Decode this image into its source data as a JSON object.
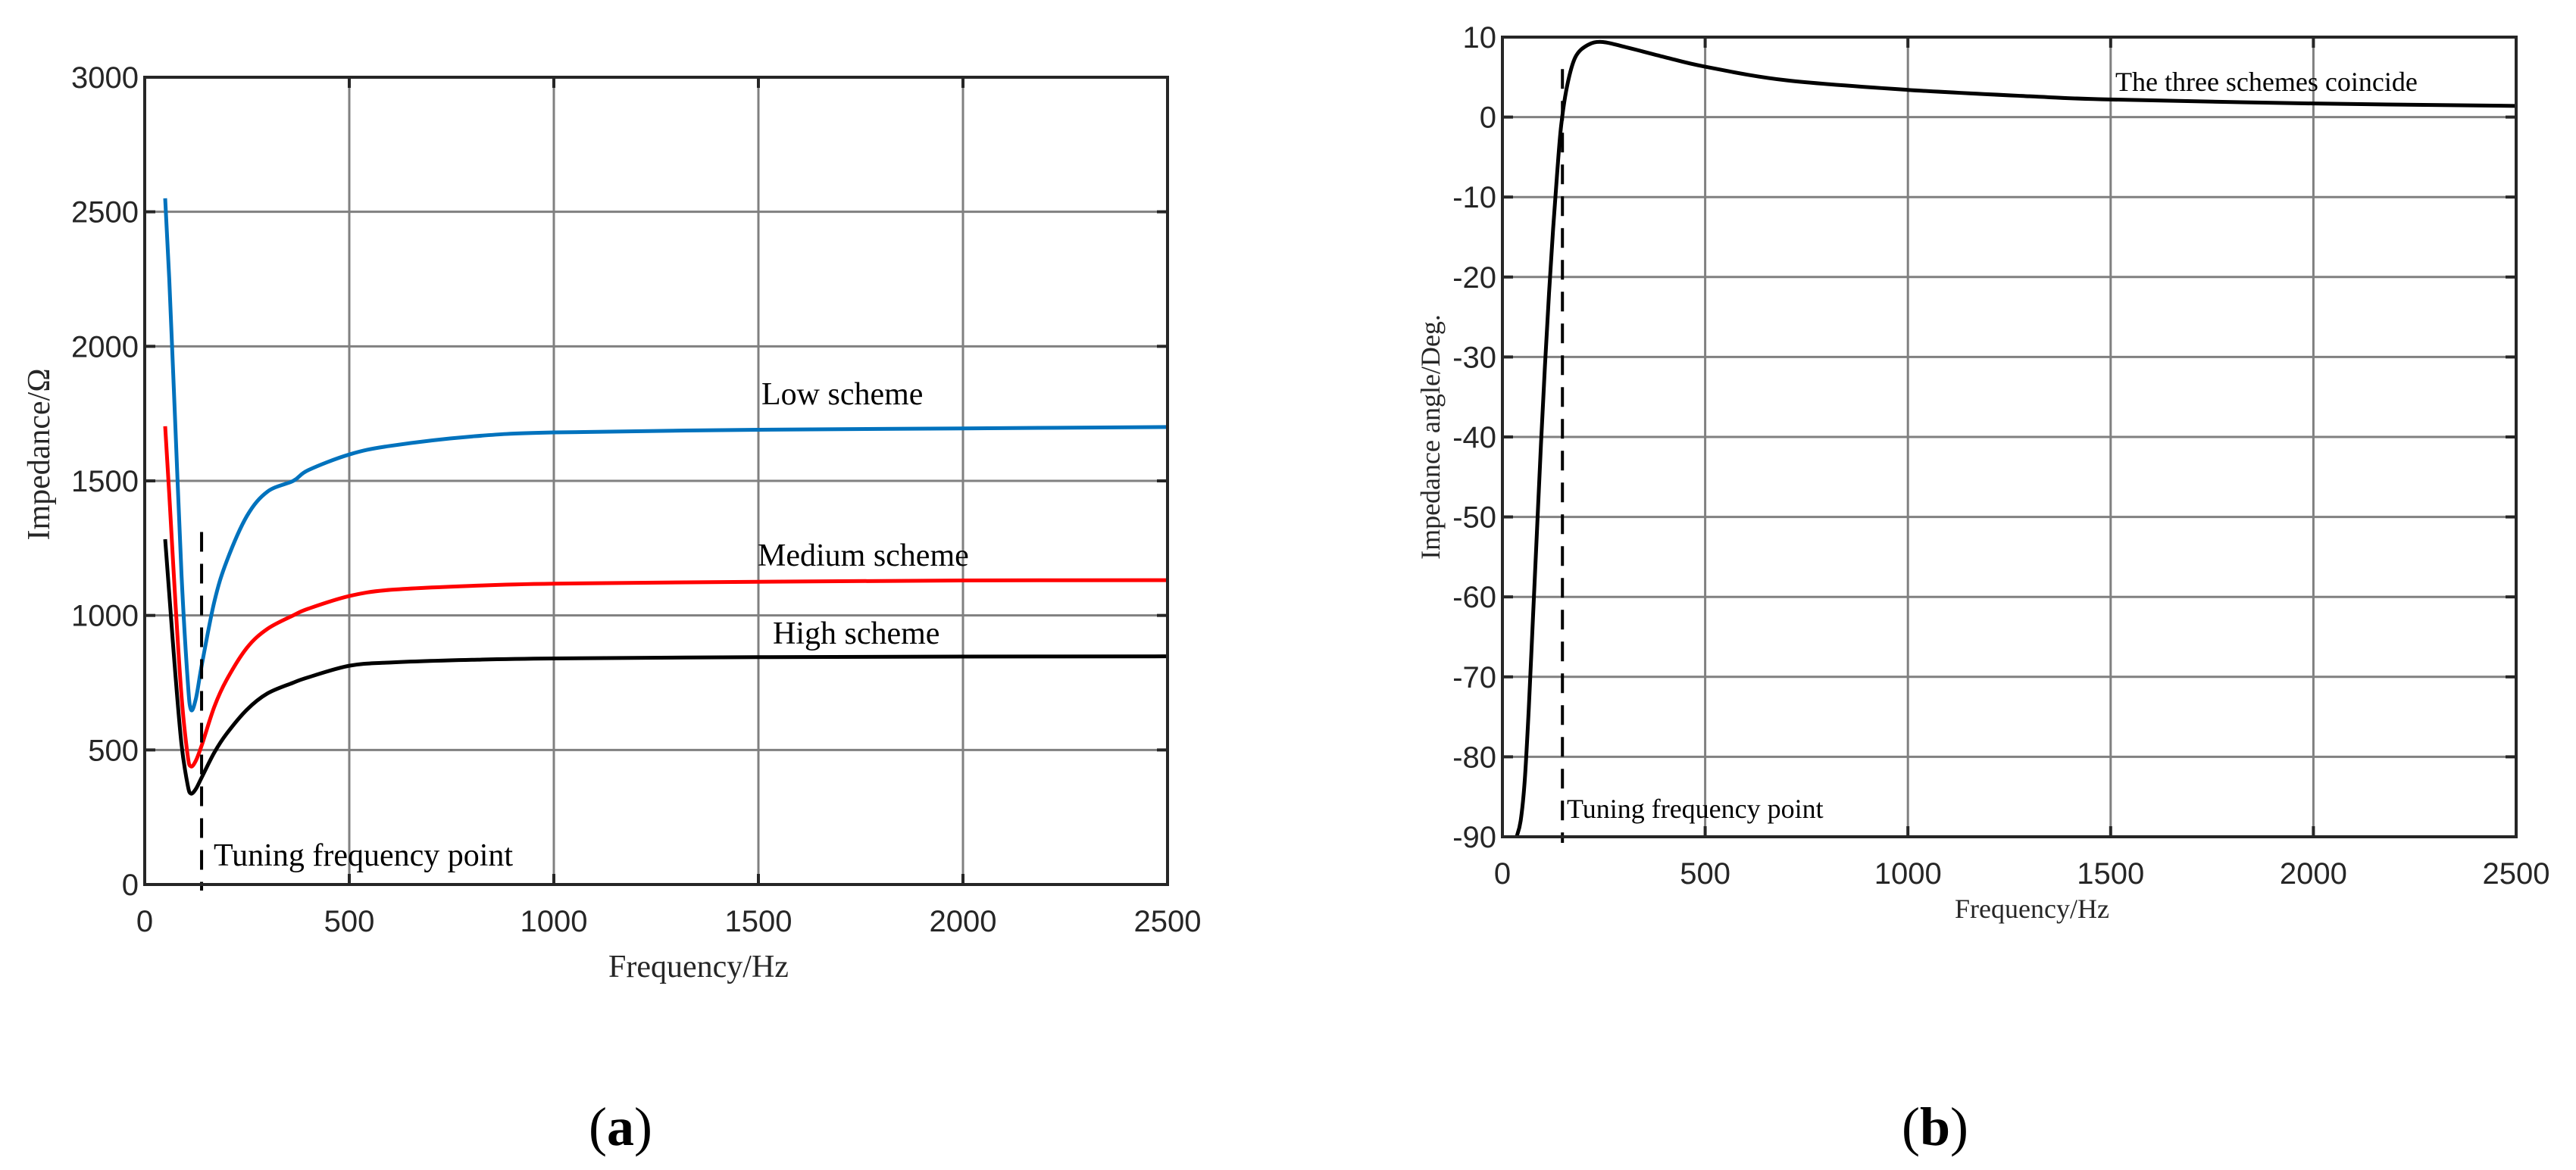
{
  "figure": {
    "panels": [
      {
        "label_open": "(",
        "label_letter": "a",
        "label_close": ")",
        "xlabel": "Frequency/Hz",
        "ylabel": "Impedance/Ω",
        "annotations": {
          "low": "Low scheme",
          "medium": "Medium scheme",
          "high": "High scheme",
          "tuning": "Tuning frequency point"
        }
      },
      {
        "label_open": "(",
        "label_letter": "b",
        "label_close": ")",
        "xlabel": "Frequency/Hz",
        "ylabel": "Impedance angle/Deg.",
        "annotations": {
          "coincide": "The three schemes coincide",
          "tuning": "Tuning frequency point"
        }
      }
    ]
  },
  "chart_data": [
    {
      "type": "line",
      "panel": "a",
      "title": "",
      "xlabel": "Frequency/Hz",
      "ylabel": "Impedance/Ω",
      "xlim": [
        0,
        2500
      ],
      "ylim": [
        0,
        3000
      ],
      "xticks": [
        0,
        500,
        1000,
        1500,
        2000,
        2500
      ],
      "yticks": [
        0,
        500,
        1000,
        1500,
        2000,
        2500,
        3000
      ],
      "grid": true,
      "legend": "none (inline text annotations)",
      "series": [
        {
          "name": "Low scheme",
          "color": "#0072BD",
          "x": [
            50,
            60,
            75,
            90,
            105,
            113,
            125,
            140,
            170,
            200,
            250,
            300,
            363,
            400,
            500,
            600,
            800,
            1000,
            1500,
            2000,
            2500
          ],
          "y": [
            2550,
            2250,
            1700,
            1150,
            760,
            650,
            690,
            820,
            1050,
            1200,
            1370,
            1460,
            1500,
            1540,
            1598,
            1630,
            1665,
            1680,
            1690,
            1695,
            1700
          ]
        },
        {
          "name": "Medium scheme",
          "color": "#FF0000",
          "x": [
            50,
            60,
            75,
            90,
            105,
            113,
            125,
            140,
            170,
            200,
            250,
            300,
            363,
            400,
            500,
            600,
            800,
            1000,
            1500,
            2000,
            2500
          ],
          "y": [
            1703,
            1450,
            1050,
            700,
            480,
            439,
            460,
            520,
            660,
            760,
            880,
            950,
            1000,
            1025,
            1072,
            1095,
            1110,
            1118,
            1125,
            1130,
            1131
          ]
        },
        {
          "name": "High scheme",
          "color": "#000000",
          "x": [
            50,
            60,
            75,
            90,
            105,
            113,
            125,
            140,
            170,
            200,
            250,
            300,
            363,
            400,
            500,
            600,
            800,
            1000,
            1500,
            2000,
            2500
          ],
          "y": [
            1283,
            1080,
            780,
            520,
            370,
            338,
            355,
            400,
            490,
            560,
            650,
            710,
            750,
            770,
            813,
            825,
            835,
            840,
            845,
            847,
            848
          ]
        }
      ],
      "annotations": [
        {
          "text": "Low scheme",
          "x": 1500,
          "y": 1800
        },
        {
          "text": "Medium scheme",
          "x": 1500,
          "y": 1160
        },
        {
          "text": "High scheme",
          "x": 1530,
          "y": 870
        },
        {
          "text": "Tuning frequency point",
          "x": 150,
          "y": 80
        }
      ],
      "tuning_frequency_line": {
        "x": 139,
        "y_range": [
          0,
          1310
        ],
        "style": "dashed"
      }
    },
    {
      "type": "line",
      "panel": "b",
      "title": "",
      "xlabel": "Frequency/Hz",
      "ylabel": "Impedance angle/Deg.",
      "xlim": [
        0,
        2500
      ],
      "ylim": [
        -90,
        10
      ],
      "xticks": [
        0,
        500,
        1000,
        1500,
        2000,
        2500
      ],
      "yticks": [
        -90,
        -80,
        -70,
        -60,
        -50,
        -40,
        -30,
        -20,
        -10,
        0,
        10
      ],
      "grid": true,
      "legend": "none (inline text annotation)",
      "series": [
        {
          "name": "All three schemes (coincident)",
          "color": "#000000",
          "x": [
            35,
            45,
            55,
            65,
            75,
            85,
            95,
            105,
            115,
            125,
            135,
            145,
            160,
            180,
            210,
            245,
            300,
            400,
            500,
            700,
            1000,
            1300,
            1500,
            2000,
            2500
          ],
          "y": [
            -90,
            -88,
            -83,
            -74,
            -63,
            -52,
            -41,
            -31,
            -22,
            -14,
            -7,
            -1,
            4,
            7.5,
            9.0,
            9.4,
            8.8,
            7.5,
            6.3,
            4.6,
            3.4,
            2.6,
            2.2,
            1.7,
            1.4
          ]
        }
      ],
      "annotations": [
        {
          "text": "The three schemes coincide",
          "x": 1480,
          "y": 4.5
        },
        {
          "text": "Tuning frequency point",
          "x": 140,
          "y": -87
        }
      ],
      "tuning_frequency_line": {
        "x": 148,
        "y_range": [
          -90,
          6
        ],
        "style": "dashed"
      }
    }
  ]
}
